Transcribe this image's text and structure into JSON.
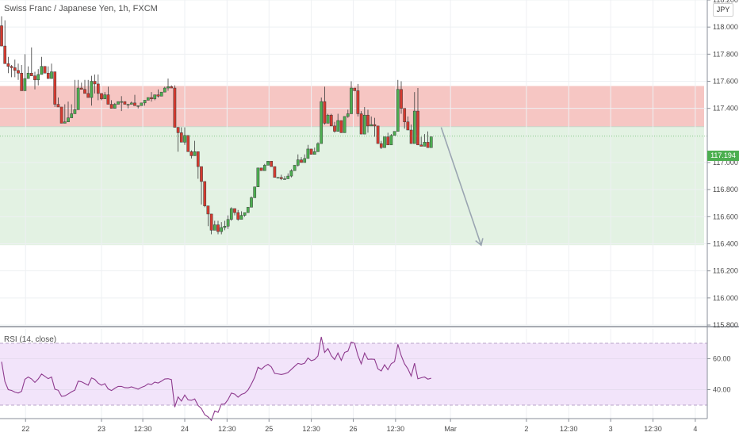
{
  "header": {
    "symbol_title": "Swiss Franc / Japanese Yen, 1h, FXCM",
    "currency": "JPY"
  },
  "price_tag": "117.194",
  "rsi": {
    "title": "RSI (14, close)",
    "levels": [
      70,
      30
    ],
    "ticks": [
      "60.00",
      "40.00"
    ],
    "values": [
      58.0,
      45.2,
      40.0,
      39.5,
      38.4,
      37.8,
      38.9,
      46.7,
      48.2,
      46.9,
      44.7,
      46.9,
      50.1,
      48.6,
      47.1,
      48.2,
      40.3,
      39.6,
      35.7,
      36.0,
      37.2,
      38.6,
      39.7,
      45.5,
      45.1,
      44.0,
      42.9,
      47.6,
      46.6,
      44.2,
      42.9,
      43.9,
      40.5,
      39.4,
      40.9,
      42.1,
      42.1,
      41.3,
      41.2,
      41.8,
      41.1,
      40.3,
      41.5,
      42.3,
      43.8,
      43.3,
      44.9,
      44.3,
      45.5,
      46.9,
      47.1,
      46.5,
      28.7,
      35.3,
      32.6,
      36.5,
      33.4,
      33.1,
      34.0,
      29.8,
      27.8,
      23.8,
      22.4,
      20.1,
      26.2,
      25.3,
      30.6,
      30.7,
      33.6,
      37.8,
      37.1,
      35.1,
      36.9,
      37.7,
      39.8,
      43.6,
      48.0,
      54.5,
      53.2,
      55.1,
      56.4,
      54.7,
      50.5,
      50.2,
      49.8,
      50.3,
      51.1,
      53.1,
      55.1,
      57.0,
      56.4,
      57.1,
      60.5,
      58.7,
      59.5,
      61.8,
      74.1,
      64.1,
      66.6,
      62.0,
      59.5,
      63.7,
      58.9,
      64.1,
      64.9,
      70.8,
      70.0,
      62.1,
      56.7,
      63.7,
      59.6,
      59.8,
      59.6,
      53.5,
      52.1,
      56.1,
      52.9,
      56.8,
      58.1,
      69.3,
      62.0,
      56.7,
      53.5,
      48.8,
      57.1,
      47.0,
      47.7,
      48.2,
      46.8,
      47.4
    ]
  },
  "chart_data": {
    "type": "candlestick",
    "title": "Swiss Franc / Japanese Yen, 1h, FXCM",
    "interval": "1h",
    "xlabel": "",
    "ylabel": "",
    "ylim": [
      115.8,
      118.2
    ],
    "y_ticks": [
      "118.200",
      "118.000",
      "117.800",
      "117.600",
      "117.400",
      "117.000",
      "116.800",
      "116.600",
      "116.400",
      "116.200",
      "116.000",
      "115.800"
    ],
    "x_ticks": [
      {
        "label": "22",
        "pos": 7.2
      },
      {
        "label": "23",
        "pos": 30.0
      },
      {
        "label": "12:30",
        "pos": 42.4
      },
      {
        "label": "24",
        "pos": 55.0
      },
      {
        "label": "12:30",
        "pos": 67.7
      },
      {
        "label": "25",
        "pos": 80.3
      },
      {
        "label": "12:30",
        "pos": 93.0
      },
      {
        "label": "26",
        "pos": 105.6
      },
      {
        "label": "12:30",
        "pos": 118.3
      },
      {
        "label": "Mar",
        "pos": 134.8
      },
      {
        "label": "2",
        "pos": 157.6
      },
      {
        "label": "12:30",
        "pos": 170.3
      },
      {
        "label": "3",
        "pos": 182.9
      },
      {
        "label": "12:30",
        "pos": 195.6
      },
      {
        "label": "4",
        "pos": 208.3
      }
    ],
    "ohlc": [
      [
        118.01,
        118.08,
        117.87,
        117.86
      ],
      [
        117.86,
        118.05,
        117.9,
        117.73
      ],
      [
        117.73,
        117.78,
        117.66,
        117.71
      ],
      [
        117.71,
        117.72,
        117.63,
        117.7
      ],
      [
        117.7,
        117.76,
        117.63,
        117.68
      ],
      [
        117.68,
        117.73,
        117.61,
        117.66
      ],
      [
        117.66,
        117.72,
        117.68,
        117.53
      ],
      [
        117.53,
        117.8,
        117.68,
        117.62
      ],
      [
        117.62,
        117.71,
        117.65,
        117.66
      ],
      [
        117.66,
        117.85,
        117.66,
        117.64
      ],
      [
        117.64,
        117.67,
        117.54,
        117.61
      ],
      [
        117.61,
        117.69,
        117.57,
        117.65
      ],
      [
        117.65,
        117.78,
        117.66,
        117.71
      ],
      [
        117.71,
        117.69,
        117.68,
        117.66
      ],
      [
        117.66,
        117.71,
        117.65,
        117.62
      ],
      [
        117.62,
        117.73,
        117.64,
        117.67
      ],
      [
        117.67,
        117.66,
        117.41,
        117.43
      ],
      [
        117.43,
        117.48,
        117.46,
        117.41
      ],
      [
        117.41,
        117.41,
        117.29,
        117.29
      ],
      [
        117.29,
        117.43,
        117.29,
        117.3
      ],
      [
        117.3,
        117.45,
        117.39,
        117.33
      ],
      [
        117.33,
        117.43,
        117.34,
        117.36
      ],
      [
        117.36,
        117.61,
        117.4,
        117.39
      ],
      [
        117.39,
        117.61,
        117.56,
        117.55
      ],
      [
        117.55,
        117.59,
        117.57,
        117.54
      ],
      [
        117.54,
        117.61,
        117.56,
        117.51
      ],
      [
        117.51,
        117.61,
        117.48,
        117.48
      ],
      [
        117.48,
        117.64,
        117.42,
        117.6
      ],
      [
        117.6,
        117.65,
        117.51,
        117.58
      ],
      [
        117.58,
        117.65,
        117.46,
        117.51
      ],
      [
        117.51,
        117.5,
        117.46,
        117.47
      ],
      [
        117.47,
        117.52,
        117.51,
        117.5
      ],
      [
        117.5,
        117.56,
        117.47,
        117.43
      ],
      [
        117.43,
        117.46,
        117.41,
        117.4
      ],
      [
        117.4,
        117.44,
        117.4,
        117.43
      ],
      [
        117.43,
        117.45,
        117.43,
        117.45
      ],
      [
        117.45,
        117.49,
        117.38,
        117.45
      ],
      [
        117.45,
        117.44,
        117.43,
        117.43
      ],
      [
        117.43,
        117.43,
        117.4,
        117.43
      ],
      [
        117.43,
        117.45,
        117.45,
        117.44
      ],
      [
        117.44,
        117.5,
        117.44,
        117.42
      ],
      [
        117.42,
        117.42,
        117.4,
        117.42
      ],
      [
        117.42,
        117.44,
        117.42,
        117.44
      ],
      [
        117.44,
        117.46,
        117.42,
        117.46
      ],
      [
        117.46,
        117.47,
        117.46,
        117.48
      ],
      [
        117.48,
        117.52,
        117.45,
        117.47
      ],
      [
        117.47,
        117.5,
        117.46,
        117.5
      ],
      [
        117.5,
        117.54,
        117.48,
        117.49
      ],
      [
        117.49,
        117.5,
        117.51,
        117.52
      ],
      [
        117.52,
        117.56,
        117.52,
        117.55
      ],
      [
        117.55,
        117.62,
        117.53,
        117.56
      ],
      [
        117.56,
        117.57,
        117.55,
        117.55
      ],
      [
        117.55,
        117.57,
        117.43,
        117.26
      ],
      [
        117.26,
        117.16,
        117.08,
        117.22
      ],
      [
        117.22,
        117.26,
        117.16,
        117.15
      ],
      [
        117.15,
        117.26,
        117.13,
        117.2
      ],
      [
        117.2,
        117.19,
        117.14,
        117.08
      ],
      [
        117.08,
        117.09,
        117.03,
        117.05
      ],
      [
        117.05,
        117.16,
        117.13,
        117.08
      ],
      [
        117.08,
        116.96,
        116.88,
        116.97
      ],
      [
        116.97,
        116.91,
        116.69,
        116.86
      ],
      [
        116.86,
        116.67,
        116.67,
        116.68
      ],
      [
        116.68,
        116.67,
        116.53,
        116.62
      ],
      [
        116.62,
        116.56,
        116.47,
        116.5
      ],
      [
        116.5,
        116.57,
        116.54,
        116.54
      ],
      [
        116.54,
        116.57,
        116.47,
        116.49
      ],
      [
        116.49,
        116.56,
        116.47,
        116.52
      ],
      [
        116.52,
        116.57,
        116.5,
        116.53
      ],
      [
        116.53,
        116.61,
        116.51,
        116.58
      ],
      [
        116.58,
        116.67,
        116.57,
        116.66
      ],
      [
        116.66,
        116.65,
        116.61,
        116.63
      ],
      [
        116.63,
        116.65,
        116.57,
        116.58
      ],
      [
        116.58,
        116.64,
        116.59,
        116.61
      ],
      [
        116.61,
        116.63,
        116.6,
        116.63
      ],
      [
        116.63,
        116.67,
        116.63,
        116.67
      ],
      [
        116.67,
        116.75,
        116.67,
        116.74
      ],
      [
        116.74,
        116.82,
        116.8,
        116.82
      ],
      [
        116.82,
        116.9,
        116.84,
        116.96
      ],
      [
        116.96,
        116.95,
        116.96,
        116.94
      ],
      [
        116.94,
        116.99,
        116.94,
        116.98
      ],
      [
        116.98,
        117.0,
        116.98,
        117.01
      ],
      [
        117.01,
        117.01,
        116.97,
        116.97
      ],
      [
        116.97,
        116.96,
        116.96,
        116.89
      ],
      [
        116.89,
        116.88,
        116.89,
        116.89
      ],
      [
        116.89,
        116.91,
        116.87,
        116.88
      ],
      [
        116.88,
        116.9,
        116.88,
        116.88
      ],
      [
        116.88,
        116.92,
        116.89,
        116.9
      ],
      [
        116.9,
        116.95,
        116.89,
        116.94
      ],
      [
        116.94,
        116.98,
        116.95,
        116.98
      ],
      [
        116.98,
        117.06,
        116.97,
        117.02
      ],
      [
        117.02,
        117.04,
        117.0,
        117.0
      ],
      [
        117.0,
        117.06,
        117.0,
        117.03
      ],
      [
        117.03,
        117.13,
        117.06,
        117.1
      ],
      [
        117.1,
        117.08,
        117.07,
        117.06
      ],
      [
        117.06,
        117.11,
        117.08,
        117.08
      ],
      [
        117.08,
        117.15,
        117.14,
        117.14
      ],
      [
        117.14,
        117.48,
        117.15,
        117.45
      ],
      [
        117.45,
        117.56,
        117.28,
        117.29
      ],
      [
        117.29,
        117.36,
        117.33,
        117.35
      ],
      [
        117.35,
        117.36,
        117.33,
        117.27
      ],
      [
        117.27,
        117.3,
        117.22,
        117.23
      ],
      [
        117.23,
        117.36,
        117.31,
        117.31
      ],
      [
        117.31,
        117.29,
        117.25,
        117.22
      ],
      [
        117.22,
        117.31,
        117.25,
        117.34
      ],
      [
        117.34,
        117.39,
        117.33,
        117.36
      ],
      [
        117.36,
        117.6,
        117.49,
        117.55
      ],
      [
        117.55,
        117.55,
        117.54,
        117.53
      ],
      [
        117.53,
        117.58,
        117.34,
        117.36
      ],
      [
        117.36,
        117.38,
        117.22,
        117.21
      ],
      [
        117.21,
        117.41,
        117.29,
        117.35
      ],
      [
        117.35,
        117.39,
        117.22,
        117.27
      ],
      [
        117.27,
        117.34,
        117.31,
        117.28
      ],
      [
        117.28,
        117.33,
        117.19,
        117.27
      ],
      [
        117.27,
        117.25,
        117.16,
        117.14
      ],
      [
        117.14,
        117.16,
        117.1,
        117.11
      ],
      [
        117.11,
        117.19,
        117.14,
        117.19
      ],
      [
        117.19,
        117.22,
        117.14,
        117.13
      ],
      [
        117.13,
        117.21,
        117.14,
        117.2
      ],
      [
        117.2,
        117.23,
        117.22,
        117.23
      ],
      [
        117.23,
        117.61,
        117.31,
        117.54
      ],
      [
        117.54,
        117.6,
        117.36,
        117.4
      ],
      [
        117.4,
        117.39,
        117.25,
        117.3
      ],
      [
        117.3,
        117.34,
        117.25,
        117.24
      ],
      [
        117.24,
        117.28,
        117.18,
        117.14
      ],
      [
        117.14,
        117.52,
        117.35,
        117.38
      ],
      [
        117.38,
        117.55,
        117.3,
        117.13
      ],
      [
        117.13,
        117.19,
        117.13,
        117.12
      ],
      [
        117.12,
        117.21,
        117.12,
        117.15
      ],
      [
        117.15,
        117.23,
        117.13,
        117.11
      ],
      [
        117.11,
        117.18,
        117.13,
        117.19
      ]
    ],
    "zones": [
      {
        "name": "resistance",
        "from": 117.265,
        "to": 117.565,
        "color": "#f6c6c3"
      },
      {
        "name": "target",
        "from": 116.39,
        "to": 117.265,
        "color": "#e3f2e3"
      }
    ],
    "projection": {
      "from_index": 132,
      "from_price": 117.26,
      "to_index": 144,
      "to_price": 116.39
    },
    "colors": {
      "up": "#4caf50",
      "down": "#d63a2f",
      "projection": "#9aa5b1"
    }
  }
}
